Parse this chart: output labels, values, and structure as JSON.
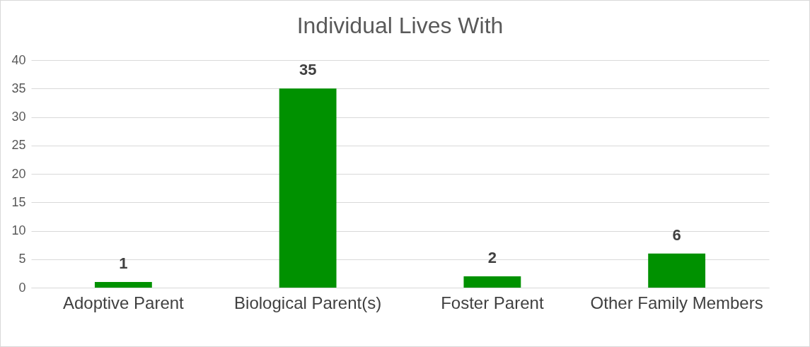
{
  "chart_data": {
    "type": "bar",
    "title": "Individual Lives With",
    "categories": [
      "Adoptive Parent",
      "Biological Parent(s)",
      "Foster Parent",
      "Other Family Members"
    ],
    "values": [
      1,
      35,
      2,
      6
    ],
    "color": "#009100",
    "ylim": [
      0,
      40
    ],
    "yticks": [
      0,
      5,
      10,
      15,
      20,
      25,
      30,
      35,
      40
    ],
    "grid": "y",
    "data_labels": true
  }
}
